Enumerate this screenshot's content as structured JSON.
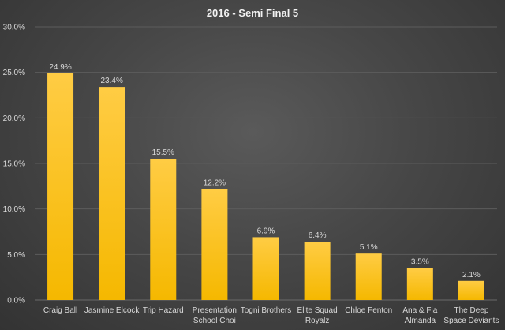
{
  "chart_data": {
    "type": "bar",
    "title": "2016 - Semi Final 5",
    "xlabel": "",
    "ylabel": "",
    "ylim": [
      0,
      30
    ],
    "yticks": [
      "0.0%",
      "5.0%",
      "10.0%",
      "15.0%",
      "20.0%",
      "25.0%",
      "30.0%"
    ],
    "ytick_values": [
      0,
      5,
      10,
      15,
      20,
      25,
      30
    ],
    "categories": [
      "Craig Ball",
      "Jasmine Elcock",
      "Trip Hazard",
      "Presentation School Choi",
      "Togni Brothers",
      "Elite Squad Royalz",
      "Chloe Fenton",
      "Ana & Fia Almanda",
      "The Deep Space Deviants"
    ],
    "category_lines": [
      [
        "Craig Ball"
      ],
      [
        "Jasmine Elcock"
      ],
      [
        "Trip Hazard"
      ],
      [
        "Presentation",
        "School Choi"
      ],
      [
        "Togni Brothers"
      ],
      [
        "Elite Squad",
        "Royalz"
      ],
      [
        "Chloe Fenton"
      ],
      [
        "Ana & Fia",
        "Almanda"
      ],
      [
        "The Deep",
        "Space Deviants"
      ]
    ],
    "values": [
      24.9,
      23.4,
      15.5,
      12.2,
      6.9,
      6.4,
      5.1,
      3.5,
      2.1
    ],
    "data_labels": [
      "24.9%",
      "23.4%",
      "15.5%",
      "12.2%",
      "6.9%",
      "6.4%",
      "5.1%",
      "3.5%",
      "2.1%"
    ],
    "grid": true,
    "legend": "none",
    "bar_color_top": "#FFCC44",
    "bar_color_bottom": "#F5B800"
  }
}
